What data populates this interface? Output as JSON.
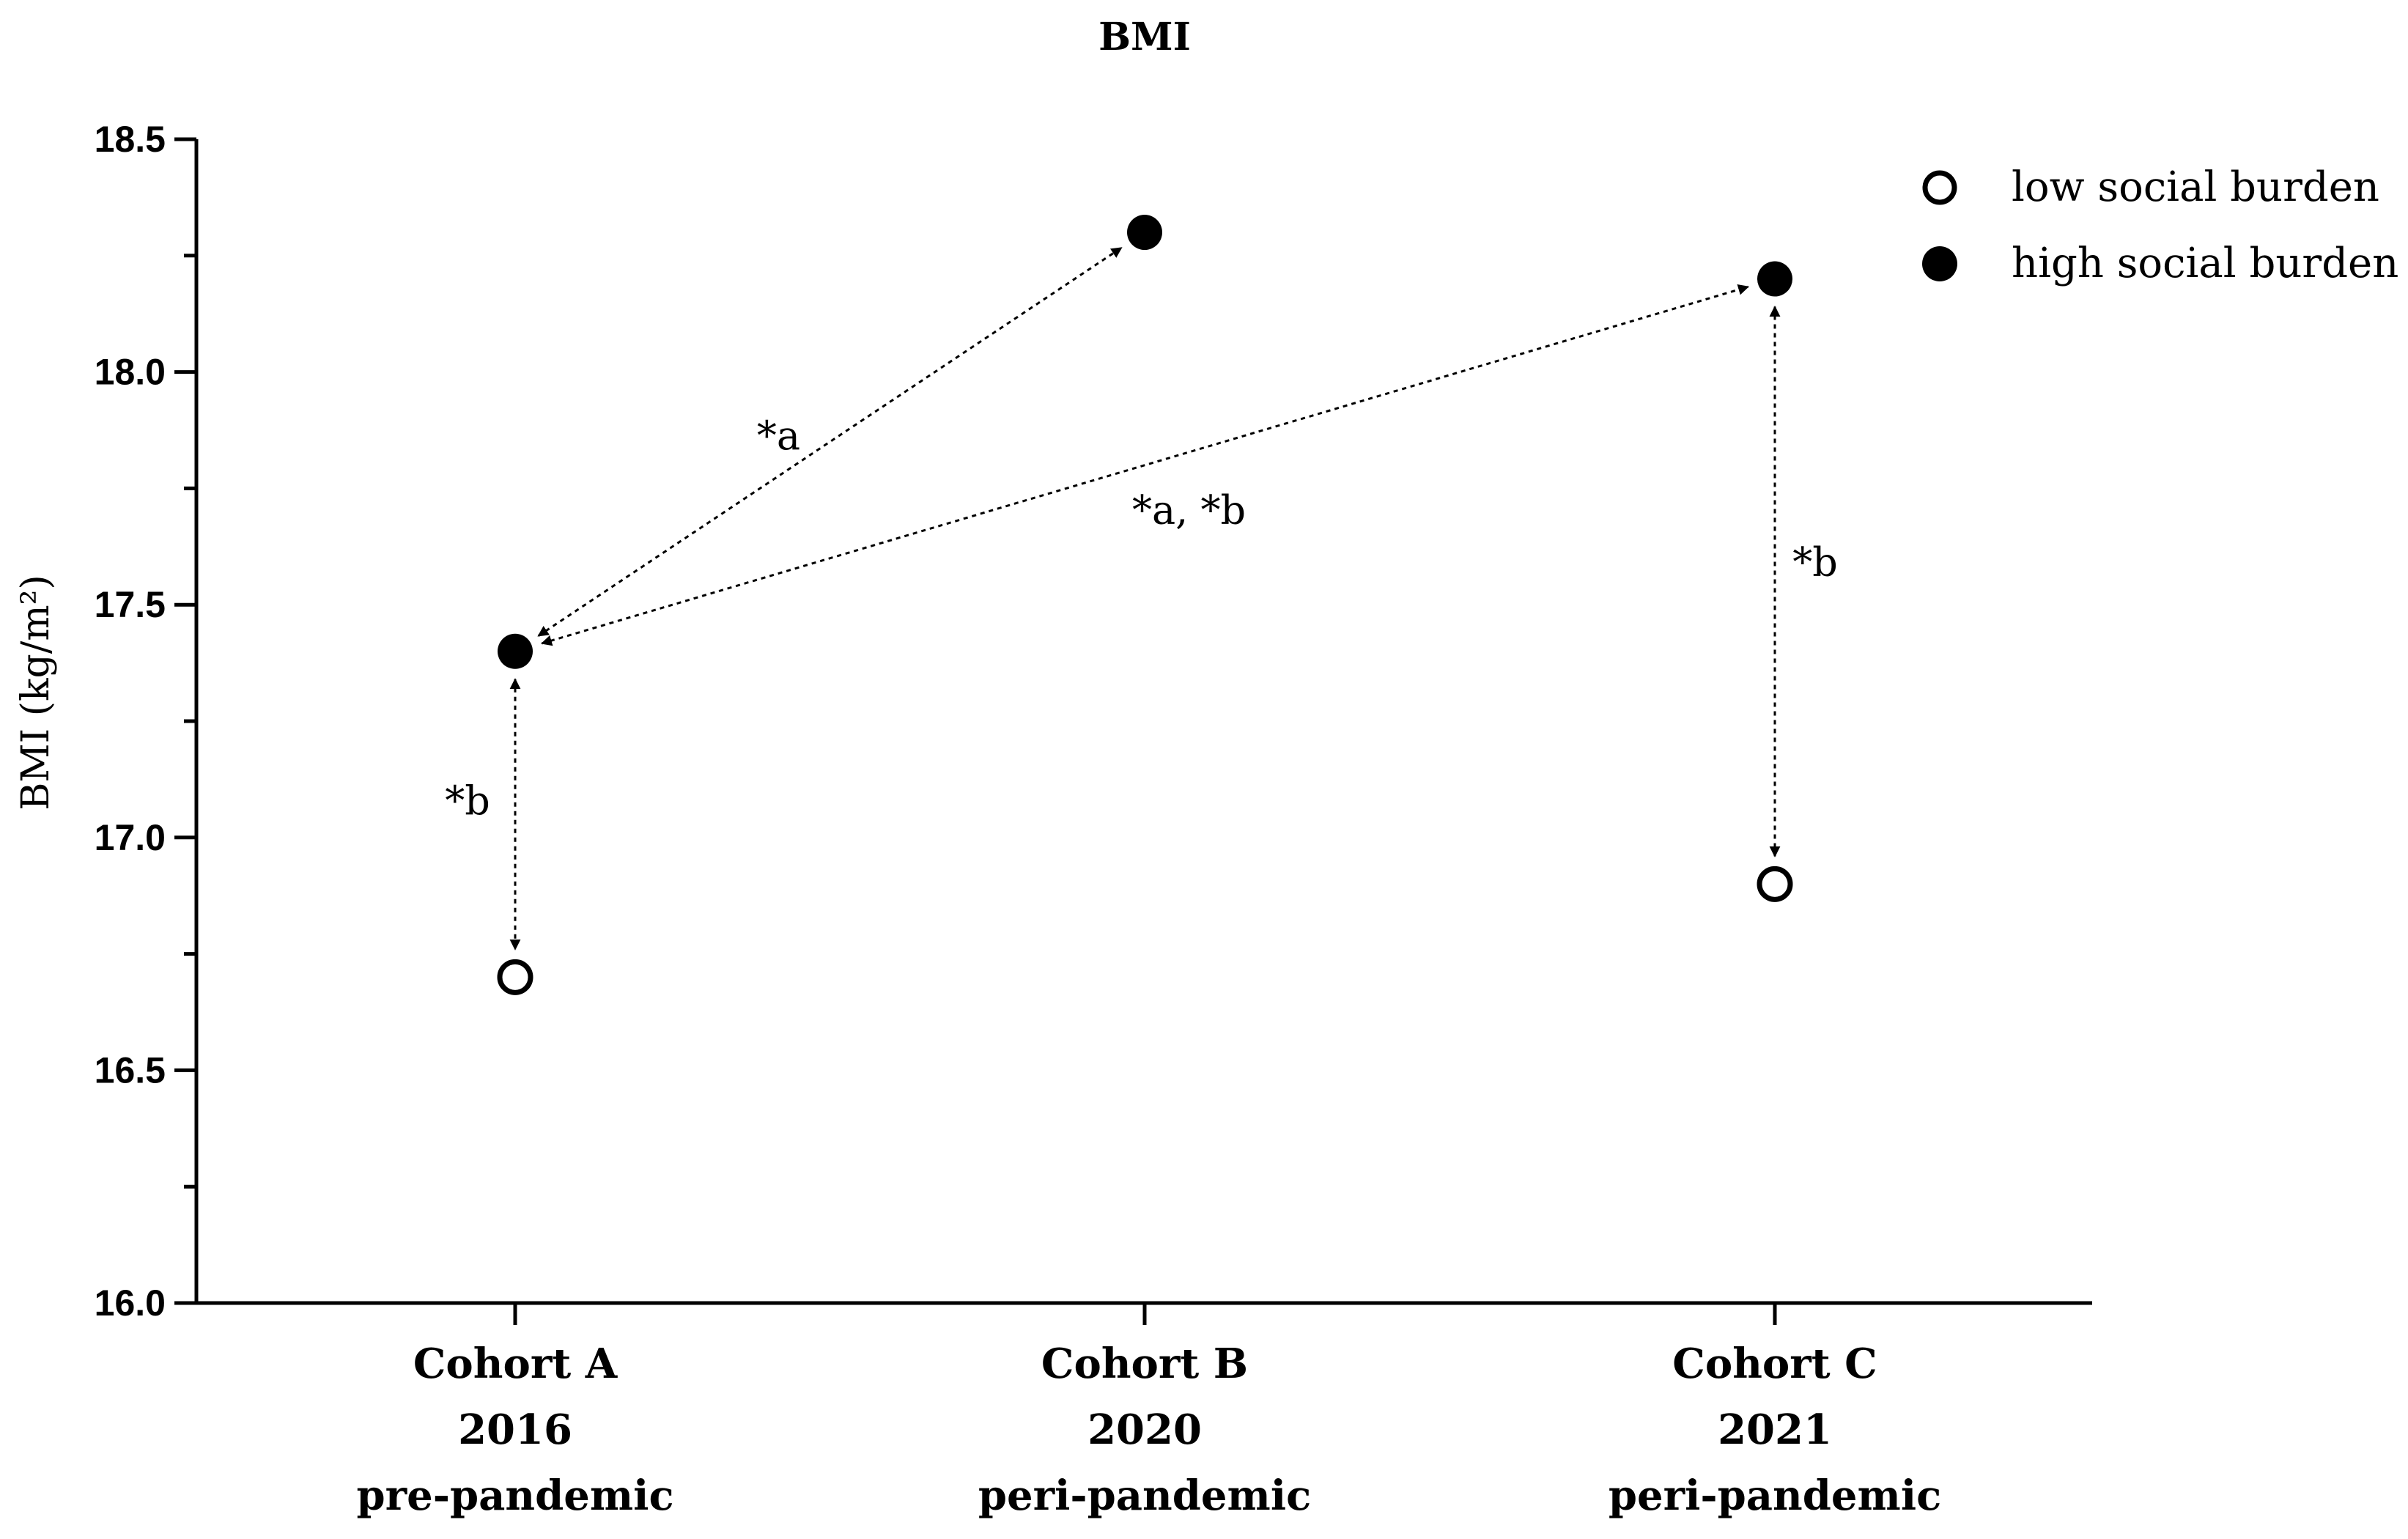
{
  "chart_data": {
    "type": "scatter",
    "title": "BMI",
    "xlabel": "",
    "ylabel": "BMI (kg/m²)",
    "ylim": [
      16.0,
      18.5
    ],
    "yticks": [
      "16.0",
      "16.5",
      "17.0",
      "17.5",
      "18.0",
      "18.5"
    ],
    "categories": [
      {
        "lines": [
          "Cohort A",
          "2016",
          "pre-pandemic"
        ]
      },
      {
        "lines": [
          "Cohort B",
          "2020",
          "peri-pandemic"
        ]
      },
      {
        "lines": [
          "Cohort C",
          "2021",
          "peri-pandemic"
        ]
      }
    ],
    "series": [
      {
        "name": "low social burden",
        "marker": "open-circle",
        "values": [
          16.7,
          null,
          16.9
        ]
      },
      {
        "name": "high social burden",
        "marker": "filled-circle",
        "values": [
          17.4,
          18.3,
          18.2
        ]
      }
    ],
    "comparisons": [
      {
        "from": {
          "category": 0,
          "value": 17.4
        },
        "to": {
          "category": 1,
          "value": 18.3
        },
        "label": "*a"
      },
      {
        "from": {
          "category": 0,
          "value": 17.4
        },
        "to": {
          "category": 2,
          "value": 18.2
        },
        "label": "*a, *b"
      },
      {
        "from": {
          "category": 0,
          "value": 17.4
        },
        "to": {
          "category": 0,
          "value": 16.7
        },
        "label": "*b"
      },
      {
        "from": {
          "category": 2,
          "value": 18.2
        },
        "to": {
          "category": 2,
          "value": 16.9
        },
        "label": "*b"
      }
    ],
    "legend_position": "top-right",
    "colors": {
      "axis": "#000000",
      "marker": "#000000",
      "background": "#ffffff"
    }
  }
}
